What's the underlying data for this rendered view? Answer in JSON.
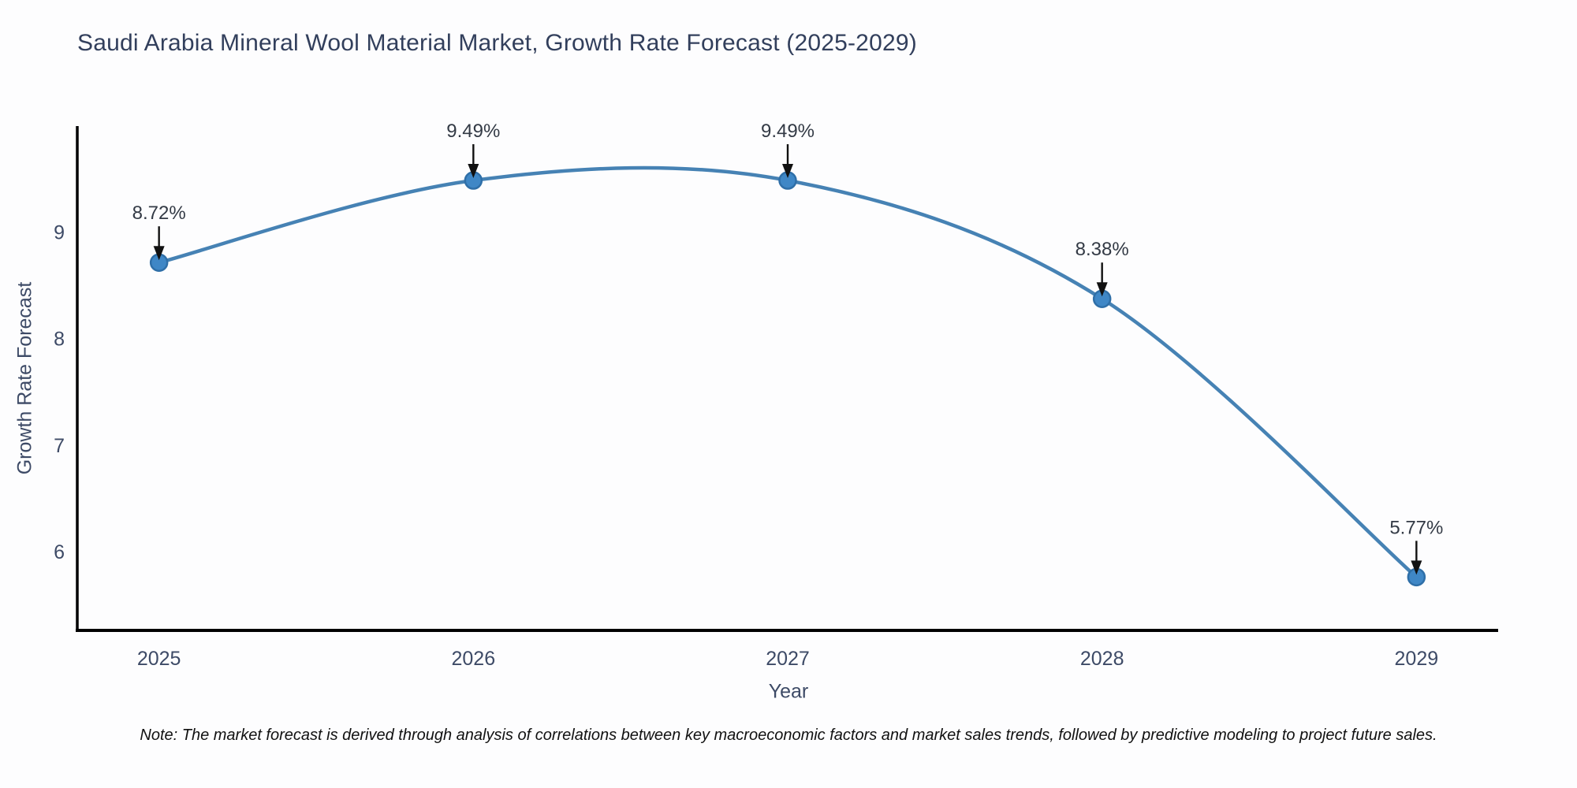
{
  "chart_data": {
    "type": "line",
    "title": "Saudi Arabia Mineral Wool Material Market, Growth Rate Forecast (2025-2029)",
    "xlabel": "Year",
    "ylabel": "Growth Rate Forecast",
    "x": [
      2025,
      2026,
      2027,
      2028,
      2029
    ],
    "values": [
      8.72,
      9.49,
      9.49,
      8.38,
      5.77
    ],
    "point_labels": [
      "8.72%",
      "9.49%",
      "9.49%",
      "8.38%",
      "5.77%"
    ],
    "xticks": [
      2025,
      2026,
      2027,
      2028,
      2029
    ],
    "xtick_labels": [
      "2025",
      "2026",
      "2027",
      "2028",
      "2029"
    ],
    "yticks": [
      6,
      7,
      8,
      9
    ],
    "ytick_labels": [
      "6",
      "7",
      "8",
      "9"
    ],
    "xlim": [
      2024.74,
      2029.26
    ],
    "ylim": [
      5.27,
      10.0
    ],
    "grid": false,
    "legend": "none",
    "line_shape": "spline",
    "colors": {
      "line": "#4682b4",
      "marker_fill": "#3f87c6",
      "marker_edge": "#2f6fa8",
      "arrow": "#111111",
      "annotation_text": "#333a45",
      "tick_text": "#3d4a66",
      "axis_line": "#000000",
      "background": "#fdfdfe"
    }
  },
  "note": {
    "text": "Note: The market forecast is derived through analysis of correlations between key macroeconomic factors and market sales trends, followed by predictive modeling to project future sales."
  }
}
